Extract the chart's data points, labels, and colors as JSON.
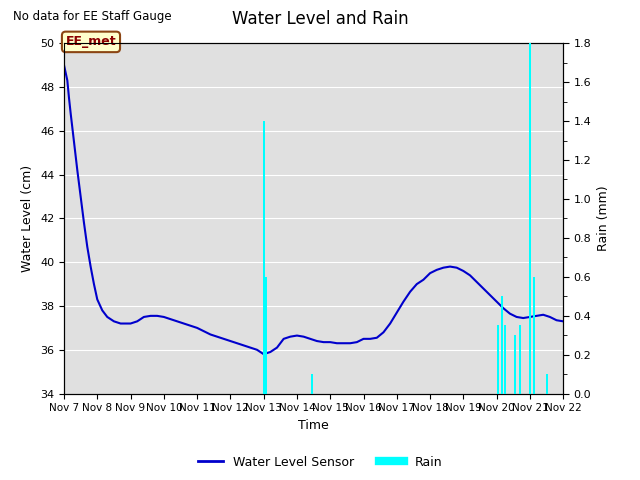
{
  "title": "Water Level and Rain",
  "subtitle": "No data for EE Staff Gauge",
  "xlabel": "Time",
  "ylabel_left": "Water Level (cm)",
  "ylabel_right": "Rain (mm)",
  "ylim_left": [
    34,
    50
  ],
  "ylim_right": [
    0.0,
    1.8
  ],
  "yticks_left": [
    34,
    36,
    38,
    40,
    42,
    44,
    46,
    48,
    50
  ],
  "yticks_right": [
    0.0,
    0.2,
    0.4,
    0.6,
    0.8,
    1.0,
    1.2,
    1.4,
    1.6,
    1.8
  ],
  "xtick_labels": [
    "Nov 7",
    "Nov 8",
    "Nov 9",
    "Nov 10",
    "Nov 11",
    "Nov 12",
    "Nov 13",
    "Nov 14",
    "Nov 15",
    "Nov 16",
    "Nov 17",
    "Nov 18",
    "Nov 19",
    "Nov 20",
    "Nov 21",
    "Nov 22"
  ],
  "water_color": "#0000cc",
  "rain_color": "#00ffff",
  "background_color": "#e0e0e0",
  "fig_background": "#ffffff",
  "legend_water": "Water Level Sensor",
  "legend_rain": "Rain",
  "annotation_box_text": "EE_met",
  "annotation_box_facecolor": "#ffffcc",
  "annotation_box_edgecolor": "#8B4513",
  "annotation_text_color": "#8B0000",
  "water_level_x": [
    7.0,
    7.1,
    7.15,
    7.2,
    7.3,
    7.4,
    7.5,
    7.6,
    7.7,
    7.8,
    7.9,
    8.0,
    8.15,
    8.3,
    8.5,
    8.7,
    8.9,
    9.0,
    9.2,
    9.4,
    9.6,
    9.8,
    10.0,
    10.2,
    10.4,
    10.6,
    10.8,
    11.0,
    11.2,
    11.4,
    11.6,
    11.8,
    12.0,
    12.2,
    12.4,
    12.6,
    12.8,
    13.0,
    13.2,
    13.4,
    13.6,
    13.8,
    14.0,
    14.2,
    14.4,
    14.6,
    14.8,
    15.0,
    15.2,
    15.4,
    15.6,
    15.8,
    16.0,
    16.2,
    16.4,
    16.6,
    16.8,
    17.0,
    17.2,
    17.4,
    17.6,
    17.8,
    18.0,
    18.2,
    18.4,
    18.6,
    18.8,
    19.0,
    19.2,
    19.4,
    19.6,
    19.8,
    20.0,
    20.2,
    20.4,
    20.6,
    20.8,
    21.0,
    21.2,
    21.4,
    21.6,
    21.8,
    22.0
  ],
  "water_level_y": [
    49.0,
    48.3,
    47.5,
    46.8,
    45.5,
    44.2,
    43.0,
    41.8,
    40.7,
    39.8,
    39.0,
    38.3,
    37.8,
    37.5,
    37.3,
    37.2,
    37.2,
    37.2,
    37.3,
    37.5,
    37.55,
    37.55,
    37.5,
    37.4,
    37.3,
    37.2,
    37.1,
    37.0,
    36.85,
    36.7,
    36.6,
    36.5,
    36.4,
    36.3,
    36.2,
    36.1,
    36.0,
    35.8,
    35.9,
    36.1,
    36.5,
    36.6,
    36.65,
    36.6,
    36.5,
    36.4,
    36.35,
    36.35,
    36.3,
    36.3,
    36.3,
    36.35,
    36.5,
    36.5,
    36.55,
    36.8,
    37.2,
    37.7,
    38.2,
    38.65,
    39.0,
    39.2,
    39.5,
    39.65,
    39.75,
    39.8,
    39.75,
    39.6,
    39.4,
    39.1,
    38.8,
    38.5,
    38.2,
    37.9,
    37.65,
    37.5,
    37.45,
    37.5,
    37.55,
    37.6,
    37.5,
    37.35,
    37.3
  ],
  "rain_x": [
    13.0,
    13.08,
    14.45,
    20.05,
    20.15,
    20.25,
    20.55,
    20.7,
    21.0,
    21.12,
    21.5
  ],
  "rain_y": [
    1.4,
    0.6,
    0.1,
    0.35,
    0.5,
    0.35,
    0.3,
    0.35,
    1.8,
    0.6,
    0.1
  ],
  "rain_width": [
    0.06,
    0.06,
    0.06,
    0.06,
    0.06,
    0.06,
    0.06,
    0.06,
    0.06,
    0.06,
    0.06
  ]
}
